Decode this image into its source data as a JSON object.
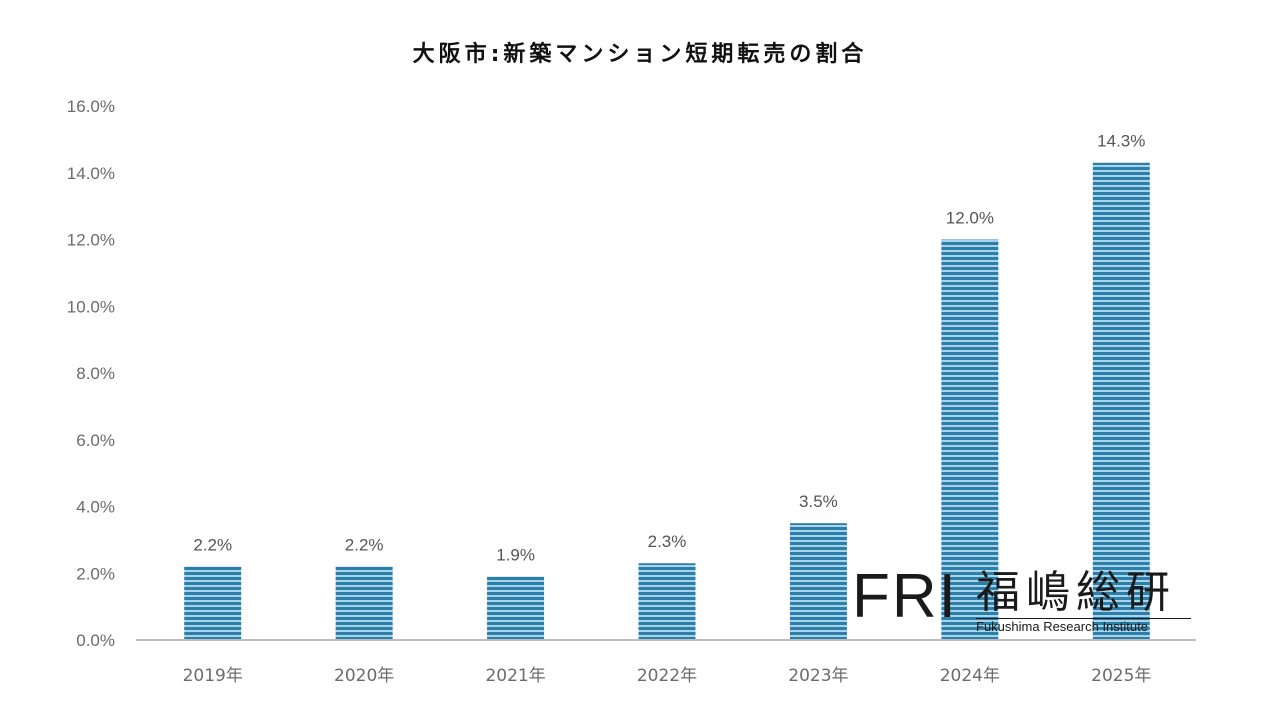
{
  "chart_data": {
    "type": "bar",
    "title": "大阪市:新築マンション短期転売の割合",
    "categories": [
      "2019年",
      "2020年",
      "2021年",
      "2022年",
      "2023年",
      "2024年",
      "2025年"
    ],
    "values": [
      2.2,
      2.2,
      1.9,
      2.3,
      3.5,
      12.0,
      14.3
    ],
    "value_labels": [
      "2.2%",
      "2.2%",
      "1.9%",
      "2.3%",
      "3.5%",
      "12.0%",
      "14.3%"
    ],
    "yticks": [
      "0.0%",
      "2.0%",
      "4.0%",
      "6.0%",
      "8.0%",
      "10.0%",
      "12.0%",
      "14.0%",
      "16.0%"
    ],
    "ylim": [
      0,
      16
    ],
    "grid": false,
    "bar_color": "#2b7fa8",
    "bar_stripe_color": "#a8d3e8"
  },
  "logo": {
    "mark": "FRI",
    "name_jp": "福嶋総研",
    "name_en": "Fukushima Research Institute"
  }
}
